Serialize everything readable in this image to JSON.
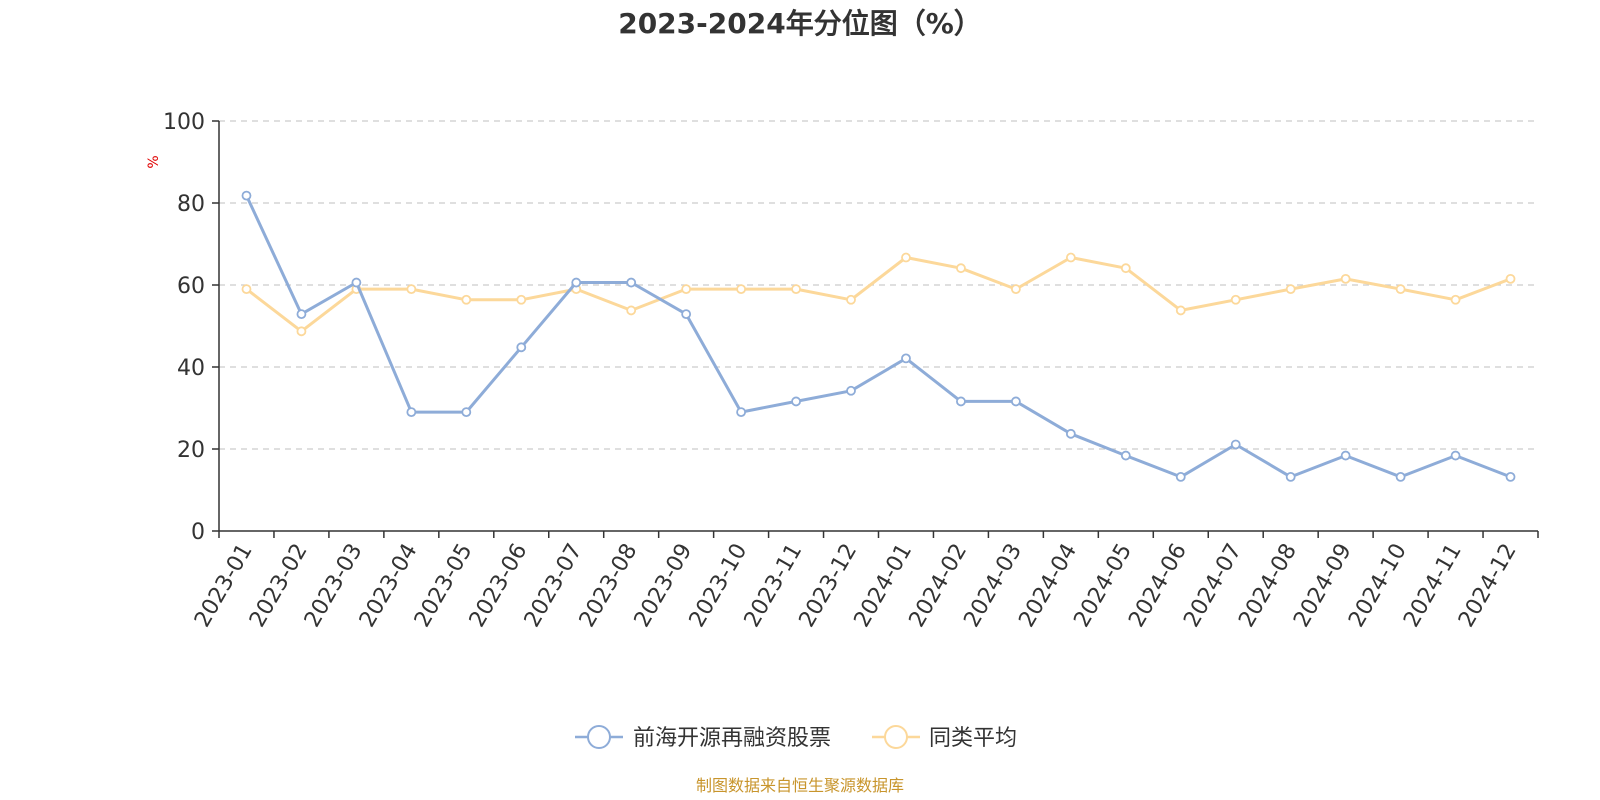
{
  "chart_data": {
    "type": "line",
    "title": "2023-2024年分位图（%）",
    "y_unit": "%",
    "ylim": [
      0,
      100
    ],
    "y_ticks": [
      0,
      20,
      40,
      60,
      80,
      100
    ],
    "grid": "horizontal-dashed",
    "legend_position": "bottom-center",
    "categories": [
      "2023-01",
      "2023-02",
      "2023-03",
      "2023-04",
      "2023-05",
      "2023-06",
      "2023-07",
      "2023-08",
      "2023-09",
      "2023-10",
      "2023-11",
      "2023-12",
      "2024-01",
      "2024-02",
      "2024-03",
      "2024-04",
      "2024-05",
      "2024-06",
      "2024-07",
      "2024-08",
      "2024-09",
      "2024-10",
      "2024-11",
      "2024-12"
    ],
    "series": [
      {
        "name": "前海开源再融资股票",
        "color": "#8eacd8",
        "values": [
          81.8,
          52.9,
          60.6,
          29.0,
          29.0,
          44.8,
          60.6,
          60.6,
          52.9,
          29.0,
          31.6,
          34.2,
          42.1,
          31.6,
          31.6,
          23.7,
          18.4,
          13.2,
          21.1,
          13.2,
          18.4,
          13.2,
          18.4,
          13.2
        ]
      },
      {
        "name": "同类平均",
        "color": "#fcd89a",
        "values": [
          59.0,
          48.7,
          59.0,
          59.0,
          56.4,
          56.4,
          59.0,
          53.8,
          59.0,
          59.0,
          59.0,
          56.4,
          66.7,
          64.1,
          59.0,
          66.7,
          64.1,
          53.8,
          56.4,
          59.0,
          61.5,
          59.0,
          56.4,
          61.5
        ]
      }
    ]
  },
  "footer": {
    "source_text": "制图数据来自恒生聚源数据库"
  }
}
